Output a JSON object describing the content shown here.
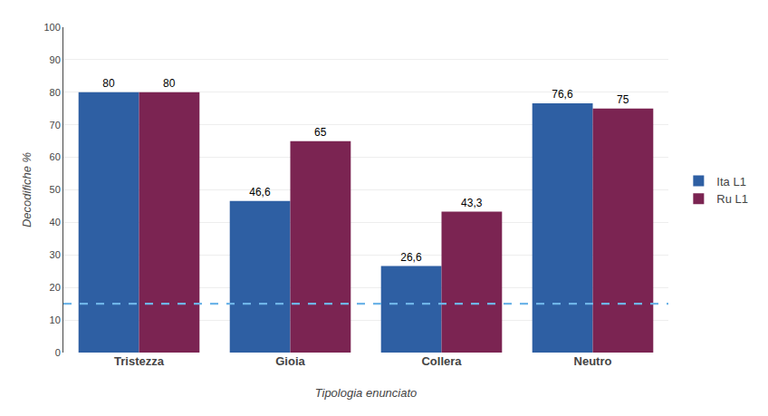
{
  "chart_data": {
    "type": "bar",
    "categories": [
      "Tristezza",
      "Gioia",
      "Collera",
      "Neutro"
    ],
    "series": [
      {
        "name": "Ita L1",
        "color": "#2E5FA3",
        "values": [
          80,
          46.6,
          26.6,
          76.6
        ],
        "value_labels": [
          "80",
          "46,6",
          "26,6",
          "76,6"
        ]
      },
      {
        "name": "Ru L1",
        "color": "#7B2452",
        "values": [
          80,
          65,
          43.3,
          75
        ],
        "value_labels": [
          "80",
          "65",
          "43,3",
          "75"
        ]
      }
    ],
    "xlabel": "Tipologia enunciato",
    "ylabel": "Decodifiche %",
    "ylim": [
      0,
      100
    ],
    "yticks": [
      0,
      10,
      20,
      30,
      40,
      50,
      60,
      70,
      80,
      90,
      100
    ],
    "reference_line": {
      "y": 15,
      "color": "#6EB4E8",
      "line_style": "dashed"
    },
    "grid": true,
    "legend": "right",
    "data_labels": true
  }
}
